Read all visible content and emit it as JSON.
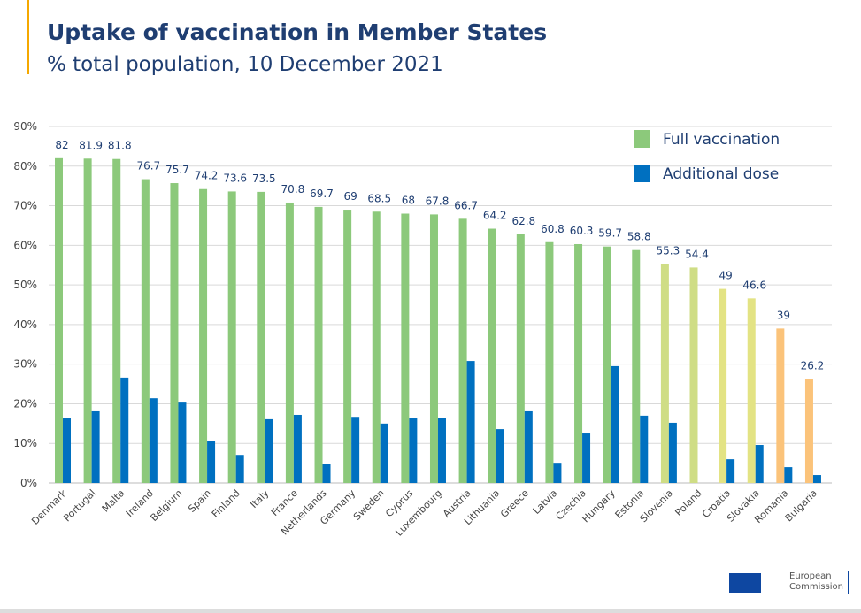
{
  "title": "Uptake of vaccination in Member States",
  "subtitle": "% total population, 10 December 2021",
  "logo": {
    "line1": "European",
    "line2": "Commission"
  },
  "colors": {
    "text": "#1f3e72",
    "full": "#8cc97b",
    "full_mid": "#cfdd85",
    "full_low": "#e3e384",
    "full_lowest": "#fbc37a",
    "additional": "#0070c0"
  },
  "chart_data": {
    "type": "bar",
    "title": "Uptake of vaccination in Member States",
    "ylabel": "% total population",
    "ylim": [
      0,
      90
    ],
    "yticks": [
      "0%",
      "10%",
      "20%",
      "30%",
      "40%",
      "50%",
      "60%",
      "70%",
      "80%",
      "90%"
    ],
    "grid": true,
    "legend_position": "top-right",
    "categories": [
      "Denmark",
      "Portugal",
      "Malta",
      "Ireland",
      "Belgium",
      "Spain",
      "Finland",
      "Italy",
      "France",
      "Netherlands",
      "Germany",
      "Sweden",
      "Cyprus",
      "Luxembourg",
      "Austria",
      "Lithuania",
      "Greece",
      "Latvia",
      "Czechia",
      "Hungary",
      "Estonia",
      "Slovenia",
      "Poland",
      "Croatia",
      "Slovakia",
      "Romania",
      "Bulgaria"
    ],
    "series": [
      {
        "name": "Full vaccination",
        "values": [
          82,
          81.9,
          81.8,
          76.7,
          75.7,
          74.2,
          73.6,
          73.5,
          70.8,
          69.7,
          69,
          68.5,
          68,
          67.8,
          66.7,
          64.2,
          62.8,
          60.8,
          60.3,
          59.7,
          58.8,
          55.3,
          54.4,
          49,
          46.6,
          39,
          26.2
        ],
        "value_labels": [
          "82",
          "81.9",
          "81.8",
          "76.7",
          "75.7",
          "74.2",
          "73.6",
          "73.5",
          "70.8",
          "69.7",
          "69",
          "68.5",
          "68",
          "67.8",
          "66.7",
          "64.2",
          "62.8",
          "60.8",
          "60.3",
          "59.7",
          "58.8",
          "55.3",
          "54.4",
          "49",
          "46.6",
          "39",
          "26.2"
        ]
      },
      {
        "name": "Additional dose",
        "values": [
          16.3,
          18.1,
          26.6,
          21.4,
          20.3,
          10.7,
          7.1,
          16.1,
          17.2,
          4.7,
          16.7,
          15.0,
          16.3,
          16.5,
          30.8,
          13.6,
          18.1,
          5.1,
          12.5,
          29.5,
          17.0,
          15.2,
          0,
          6.0,
          9.6,
          4.0,
          2.0
        ]
      }
    ]
  }
}
